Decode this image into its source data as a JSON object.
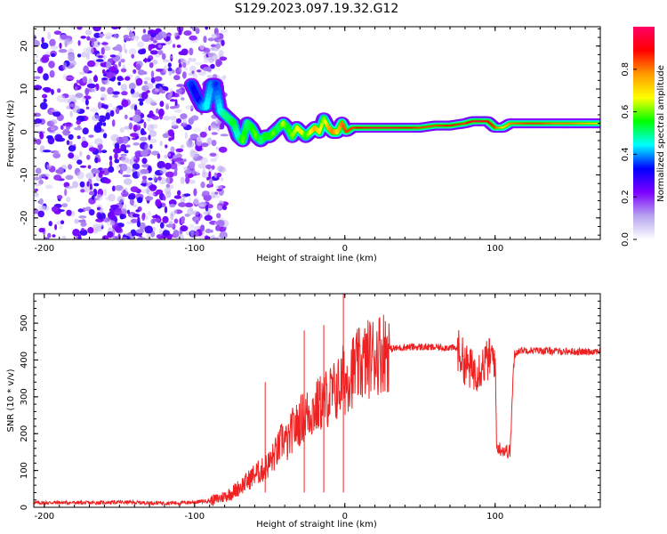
{
  "title": "S129.2023.097.19.32.G12",
  "chart_data": [
    {
      "type": "heatmap",
      "xlabel": "Height of straight line (km)",
      "ylabel": "Frequency (Hz)",
      "xlim": [
        -207,
        170
      ],
      "ylim": [
        -25,
        24.5
      ],
      "xticks": [
        -200,
        -100,
        0,
        100
      ],
      "xtick_labels": [
        "-200",
        "-100",
        "0",
        "100"
      ],
      "yticks": [
        -20,
        -10,
        0,
        10,
        20
      ],
      "ytick_labels": [
        "-20",
        "-10",
        "0",
        "10",
        "20"
      ],
      "noise_region": {
        "x": [
          -207,
          -85
        ],
        "y": [
          -25,
          24.5
        ],
        "amplitude": [
          0.05,
          0.3
        ]
      },
      "ridge": {
        "x": [
          -102,
          -98,
          -95,
          -92,
          -89,
          -86,
          -83,
          -80,
          -77,
          -74,
          -71,
          -68,
          -65,
          -62,
          -59,
          -56,
          -53,
          -50,
          -47,
          -44,
          -41,
          -38,
          -35,
          -32,
          -29,
          -26,
          -23,
          -20,
          -17,
          -14,
          -11,
          -8,
          -5,
          -2,
          1,
          5,
          10,
          20,
          30,
          40,
          50,
          60,
          70,
          80,
          85,
          90,
          95,
          100,
          105,
          110,
          120,
          130,
          140,
          150,
          160,
          170
        ],
        "y": [
          11,
          8,
          6,
          6,
          11,
          11,
          5,
          4,
          3,
          2,
          -1,
          -2,
          2,
          1,
          -1,
          -2,
          -1,
          -1,
          0,
          1,
          2,
          1,
          -1,
          1,
          0,
          -1,
          0,
          1,
          0,
          3,
          1,
          0,
          0,
          2,
          0,
          1,
          1,
          1,
          1,
          1,
          1,
          1.5,
          1.5,
          2,
          2.5,
          2.5,
          2.5,
          1,
          1,
          2,
          2,
          2,
          2,
          2,
          2,
          2
        ],
        "amplitude": [
          0.35,
          0.3,
          0.4,
          0.45,
          0.4,
          0.35,
          0.45,
          0.5,
          0.5,
          0.55,
          0.45,
          0.6,
          0.5,
          0.55,
          0.6,
          0.5,
          0.55,
          0.55,
          0.6,
          0.5,
          0.65,
          0.55,
          0.6,
          0.65,
          0.7,
          0.55,
          0.65,
          0.75,
          0.7,
          0.6,
          0.75,
          0.8,
          0.7,
          0.8,
          0.85,
          0.85,
          0.9,
          0.95,
          0.95,
          0.9,
          0.85,
          0.85,
          0.9,
          0.85,
          0.95,
          0.95,
          0.9,
          0.85,
          0.7,
          0.8,
          0.85,
          0.85,
          0.8,
          0.8,
          0.75,
          0.7
        ]
      },
      "colorbar": {
        "label": "Normalized spectral amplitude",
        "range": [
          0,
          1
        ],
        "ticks": [
          0.0,
          0.2,
          0.4,
          0.6,
          0.8
        ],
        "tick_labels": [
          "0.0",
          "0.2",
          "0.4",
          "0.6",
          "0.8"
        ],
        "colormap": [
          "#ffffff",
          "#b6a3ee",
          "#7c00ff",
          "#0000ff",
          "#00ffff",
          "#00ff00",
          "#ffff00",
          "#ff9900",
          "#ff0000",
          "#ff0066"
        ]
      }
    },
    {
      "type": "line",
      "xlabel": "Height of straight line (km)",
      "ylabel": "SNR (10 * v/v)",
      "xlim": [
        -207,
        170
      ],
      "ylim": [
        0,
        580
      ],
      "xticks": [
        -200,
        -100,
        0,
        100
      ],
      "xtick_labels": [
        "-200",
        "-100",
        "0",
        "100"
      ],
      "yticks": [
        0,
        100,
        200,
        300,
        400,
        500
      ],
      "ytick_labels": [
        "0",
        "100",
        "200",
        "300",
        "400",
        "500"
      ],
      "color": "#ee2222",
      "series": [
        {
          "x": [
            -207,
            -190,
            -170,
            -150,
            -130,
            -110,
            -100,
            -95,
            -90,
            -85,
            -80,
            -75,
            -70,
            -65,
            -60,
            -55,
            -50,
            -47,
            -44,
            -41,
            -38,
            -35,
            -32,
            -29,
            -26,
            -23,
            -20,
            -17,
            -14,
            -11,
            -8,
            -5,
            -3,
            -1,
            0,
            1,
            3,
            5,
            8,
            10,
            13,
            16,
            20,
            25,
            30,
            35,
            40,
            50,
            60,
            70,
            75,
            80,
            85,
            90,
            95,
            100,
            101,
            103,
            106,
            110,
            112,
            113,
            115,
            120,
            130,
            140,
            150,
            160,
            170
          ],
          "y": [
            12,
            13,
            12,
            14,
            12,
            12,
            14,
            16,
            18,
            22,
            30,
            40,
            55,
            70,
            90,
            100,
            120,
            140,
            160,
            190,
            170,
            210,
            220,
            240,
            250,
            260,
            265,
            280,
            290,
            300,
            310,
            320,
            330,
            350,
            340,
            345,
            365,
            370,
            380,
            385,
            395,
            405,
            415,
            425,
            430,
            432,
            435,
            435,
            434,
            434,
            430,
            390,
            370,
            380,
            400,
            410,
            165,
            160,
            155,
            150,
            360,
            410,
            425,
            427,
            425,
            424,
            423,
            422,
            425
          ]
        }
      ],
      "spikes": [
        {
          "x": -53,
          "y": 340
        },
        {
          "x": -27,
          "y": 480
        },
        {
          "x": -14,
          "y": 495
        },
        {
          "x": -1,
          "y": 580
        }
      ]
    }
  ]
}
